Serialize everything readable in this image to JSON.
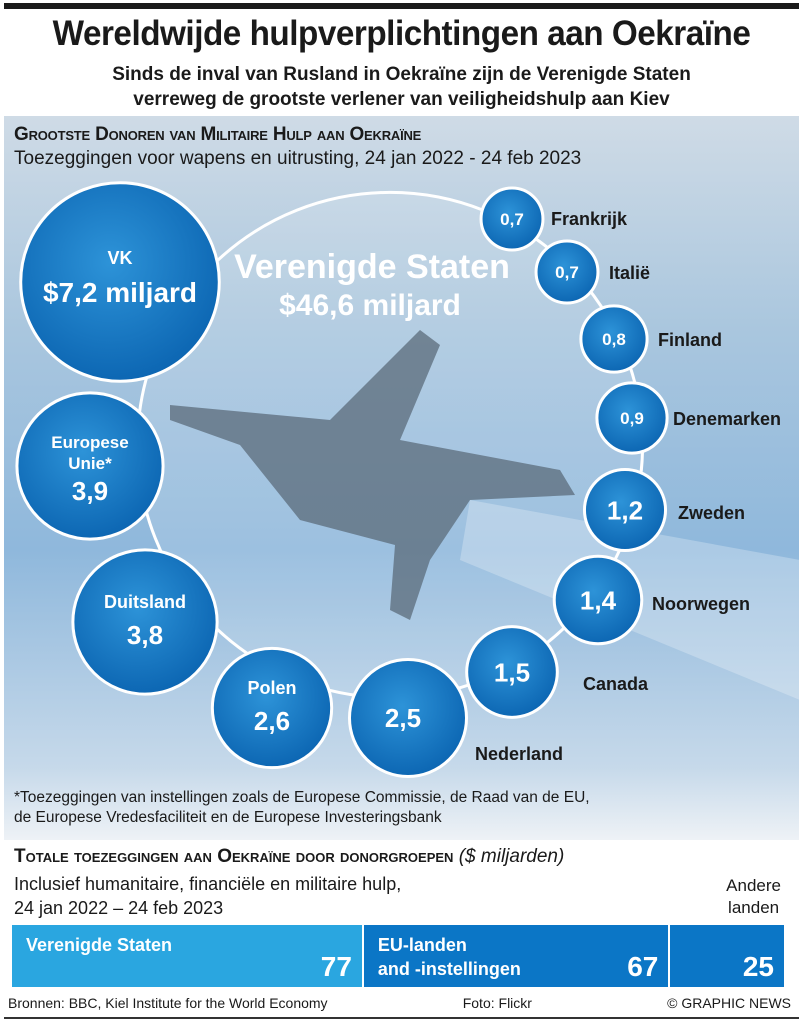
{
  "header": {
    "title": "Wereldwijde hulpverplichtingen aan Oekraïne",
    "subtitle_line1": "Sinds de inval van Rusland in Oekraïne zijn de Verenigde Staten",
    "subtitle_line2": "verreweg de grootste verlener van veiligheidshulp aan Kiev"
  },
  "chart_data": [
    {
      "type": "bubble",
      "title": "Grootste Donoren van Militaire Hulp aan Oekraïne",
      "subtitle": "Toezeggingen voor wapens en uitrusting, 24 jan 2022 - 24 feb 2023",
      "unit": "$ miljard",
      "items": [
        {
          "name": "Verenigde Staten",
          "value": 46.6,
          "label": "$46,6 miljard"
        },
        {
          "name": "VK",
          "value": 7.2,
          "label": "$7,2 miljard"
        },
        {
          "name": "Europese Unie*",
          "value": 3.9,
          "label": "3,9"
        },
        {
          "name": "Duitsland",
          "value": 3.8,
          "label": "3,8"
        },
        {
          "name": "Polen",
          "value": 2.6,
          "label": "2,6"
        },
        {
          "name": "Nederland",
          "value": 2.5,
          "label": "2,5"
        },
        {
          "name": "Canada",
          "value": 1.5,
          "label": "1,5"
        },
        {
          "name": "Noorwegen",
          "value": 1.4,
          "label": "1,4"
        },
        {
          "name": "Zweden",
          "value": 1.2,
          "label": "1,2"
        },
        {
          "name": "Denemarken",
          "value": 0.9,
          "label": "0,9"
        },
        {
          "name": "Finland",
          "value": 0.8,
          "label": "0,8"
        },
        {
          "name": "Italië",
          "value": 0.7,
          "label": "0,7"
        },
        {
          "name": "Frankrijk",
          "value": 0.7,
          "label": "0,7"
        }
      ],
      "footnote_line1": "*Toezeggingen van instellingen zoals de Europese Commissie, de Raad van de EU,",
      "footnote_line2": "de Europese Vredesfaciliteit en de Europese Investeringsbank"
    },
    {
      "type": "stacked-bar",
      "title": "Totale toezeggingen aan Oekraïne door donorgroepen",
      "unit_label": "($ miljarden)",
      "subtitle_line1": "Inclusief humanitaire, financiële en militaire hulp,",
      "subtitle_line2": "24 jan 2022 – 24 feb 2023",
      "segments": [
        {
          "name_line1": "Verenigde Staten",
          "name_line2": "",
          "value": 77,
          "color": "#2aa6e0"
        },
        {
          "name_line1": "EU-landen",
          "name_line2": "and -instellingen",
          "value": 67,
          "color": "#0b76c6"
        },
        {
          "name_line1": "Andere",
          "name_line2": "landen",
          "value": 25,
          "color": "#0b76c6"
        }
      ]
    }
  ],
  "footer": {
    "sources": "Bronnen: BBC, Kiel Institute for the World Economy",
    "photo": "Foto: Flickr",
    "credit": "© GRAPHIC NEWS"
  },
  "colors": {
    "bubble": "#0e6fbe",
    "bubble_light": "#2b8fd6"
  }
}
